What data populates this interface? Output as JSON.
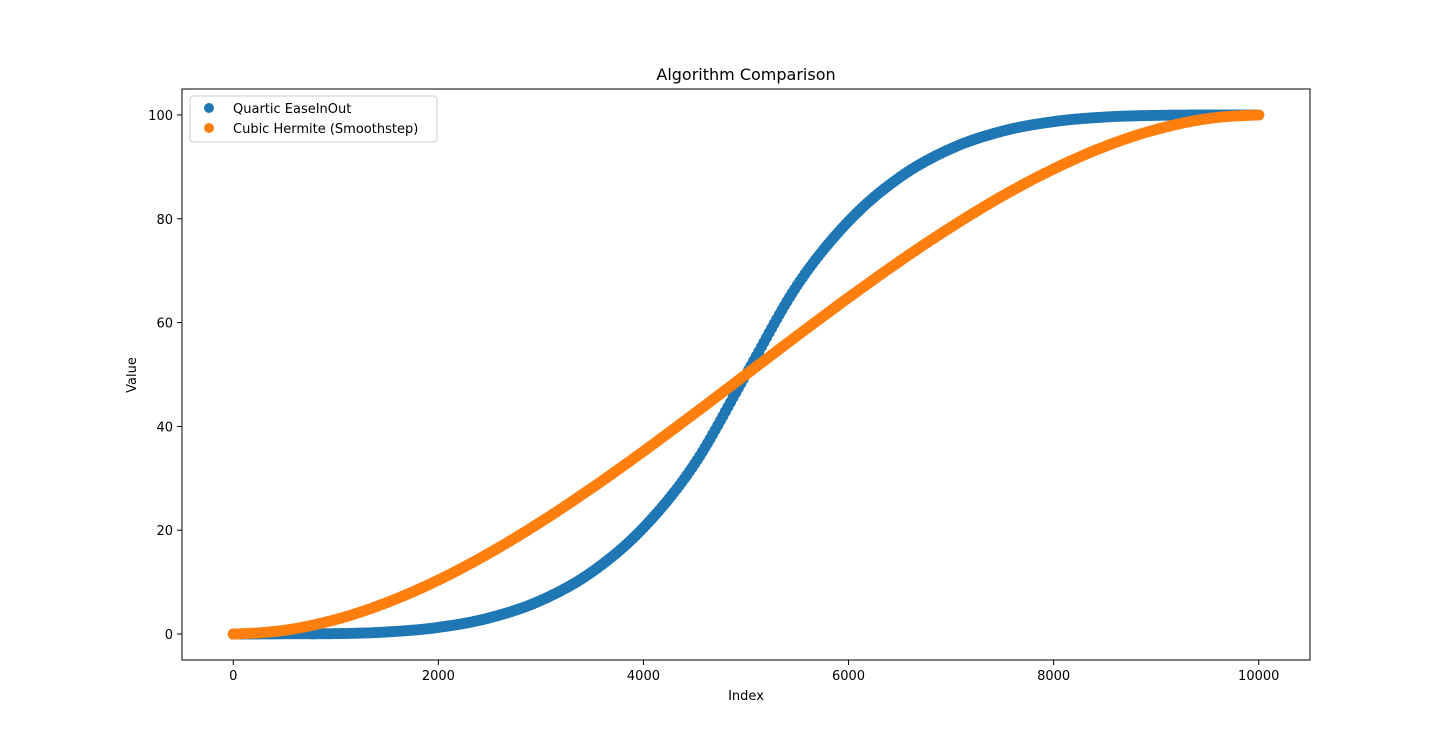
{
  "chart_data": {
    "type": "scatter",
    "title": "Algorithm Comparison",
    "xlabel": "Index",
    "ylabel": "Value",
    "xlim": [
      -500,
      10500
    ],
    "ylim": [
      -5,
      105
    ],
    "xticks": [
      0,
      2000,
      4000,
      6000,
      8000,
      10000
    ],
    "yticks": [
      0,
      20,
      40,
      60,
      80,
      100
    ],
    "x_range": [
      0,
      10000
    ],
    "legend_position": "top-left",
    "grid": false,
    "series": [
      {
        "name": "Quartic EaseInOut",
        "color": "#1f77b4",
        "x": [
          0,
          500,
          1000,
          1500,
          2000,
          2500,
          3000,
          3500,
          4000,
          4500,
          5000,
          5500,
          6000,
          6500,
          7000,
          7500,
          8000,
          8500,
          9000,
          9500,
          10000
        ],
        "values": [
          0,
          0.05,
          0.08,
          0.4,
          1.28,
          3.13,
          6.48,
          12.0,
          20.48,
          32.8,
          50,
          67.2,
          79.52,
          88.0,
          93.52,
          96.88,
          98.72,
          99.6,
          99.92,
          99.99,
          100
        ]
      },
      {
        "name": "Cubic Hermite (Smoothstep)",
        "color": "#ff7f0e",
        "x": [
          0,
          500,
          1000,
          1500,
          2000,
          2500,
          3000,
          3500,
          4000,
          4500,
          5000,
          5500,
          6000,
          6500,
          7000,
          7500,
          8000,
          8500,
          9000,
          9500,
          10000
        ],
        "values": [
          0,
          0.73,
          2.8,
          6.08,
          10.4,
          15.63,
          21.6,
          28.18,
          35.2,
          42.53,
          50,
          57.48,
          64.8,
          71.83,
          78.4,
          84.38,
          89.6,
          93.93,
          97.2,
          99.28,
          100
        ]
      }
    ]
  }
}
